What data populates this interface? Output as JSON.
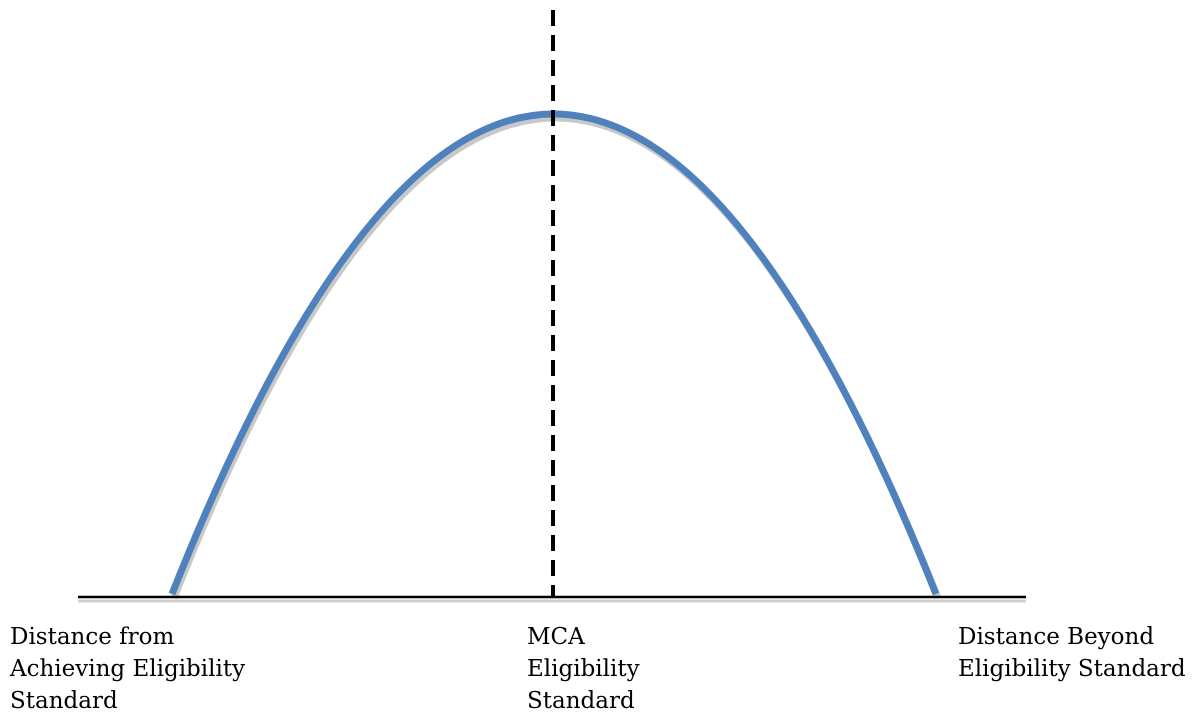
{
  "diagram": {
    "curve_color": "#4f81bd",
    "axis_color": "#000000",
    "divider_color": "#000000",
    "shape": "inverted-parabola",
    "divider_style": "dashed",
    "labels": {
      "left": [
        "Distance from",
        "Achieving Eligibility",
        "Standard"
      ],
      "center": [
        "MCA",
        "Eligibility",
        "Standard"
      ],
      "right": [
        "Distance Beyond",
        "Eligibility Standard"
      ]
    }
  }
}
